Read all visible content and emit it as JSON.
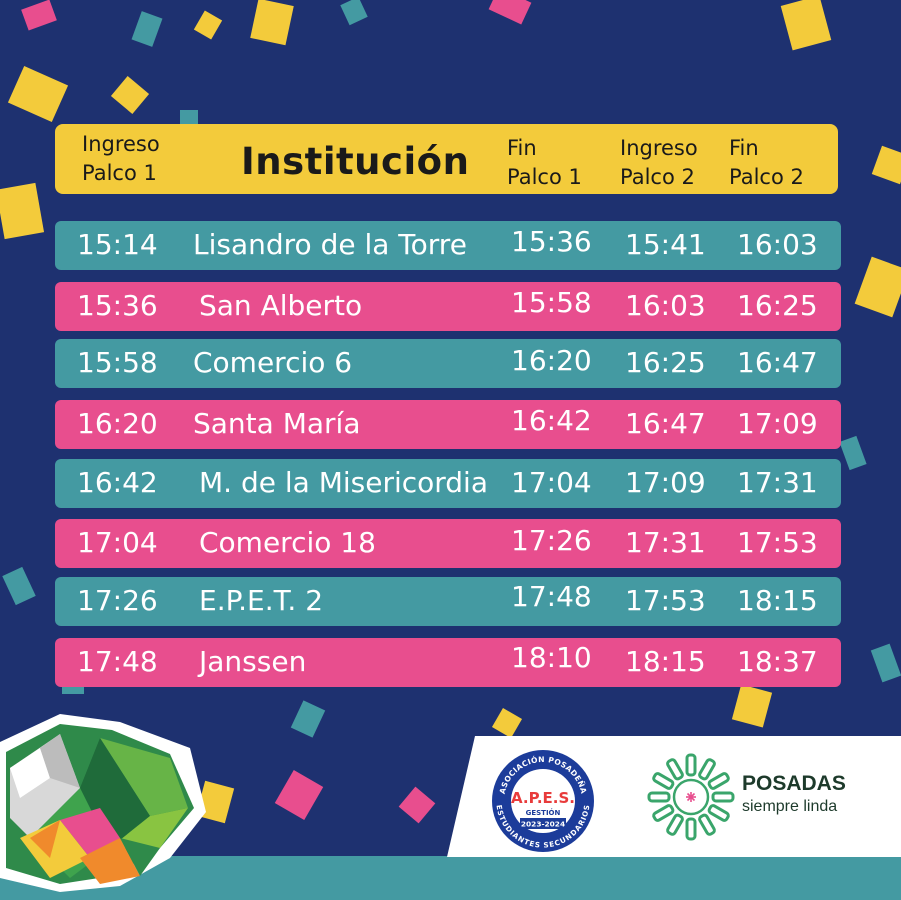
{
  "header": {
    "col1_line1": "Ingreso",
    "col1_line2": "Palco 1",
    "institution": "Institución",
    "col3_line1": "Fin",
    "col3_line2": "Palco 1",
    "col4_line1": "Ingreso",
    "col4_line2": "Palco 2",
    "col5_line1": "Fin",
    "col5_line2": "Palco 2"
  },
  "rows": [
    {
      "ingreso1": "15:14",
      "institucion": "Lisandro de la Torre",
      "fin1": "15:36",
      "ingreso2": "15:41",
      "fin2": "16:03",
      "color": "#449aa2"
    },
    {
      "ingreso1": "15:36",
      "institucion": "San Alberto",
      "fin1": "15:58",
      "ingreso2": "16:03",
      "fin2": "16:25",
      "color": "#e84e8e"
    },
    {
      "ingreso1": "15:58",
      "institucion": "Comercio 6",
      "fin1": "16:20",
      "ingreso2": "16:25",
      "fin2": "16:47",
      "color": "#449aa2"
    },
    {
      "ingreso1": "16:20",
      "institucion": "Santa María",
      "fin1": "16:42",
      "ingreso2": "16:47",
      "fin2": "17:09",
      "color": "#e84e8e"
    },
    {
      "ingreso1": "16:42",
      "institucion": "M. de la Misericordia",
      "fin1": "17:04",
      "ingreso2": "17:09",
      "fin2": "17:31",
      "color": "#449aa2"
    },
    {
      "ingreso1": "17:04",
      "institucion": "Comercio 18",
      "fin1": "17:26",
      "ingreso2": "17:31",
      "fin2": "17:53",
      "color": "#e84e8e"
    },
    {
      "ingreso1": "17:26",
      "institucion": "E.P.E.T. 2",
      "fin1": "17:48",
      "ingreso2": "17:53",
      "fin2": "18:15",
      "color": "#449aa2"
    },
    {
      "ingreso1": "17:48",
      "institucion": "Janssen",
      "fin1": "18:10",
      "ingreso2": "18:15",
      "fin2": "18:37",
      "color": "#e84e8e"
    }
  ],
  "logos": {
    "apes_ring_top": "ASOCIACIÓN POSADEÑA",
    "apes_ring_bottom": "ESTUDIANTES SECUNDARIOS",
    "apes_acronym": "A.P.E.S.",
    "apes_gestion": "GESTIÓN",
    "apes_years": "2023-2024",
    "posadas_title": "POSADAS",
    "posadas_subtitle": "siempre linda"
  },
  "colors": {
    "background": "#1e3170",
    "header": "#f3cb3b",
    "teal": "#449aa2",
    "pink": "#e84e8e",
    "posadas_green": "#3aa56b"
  }
}
